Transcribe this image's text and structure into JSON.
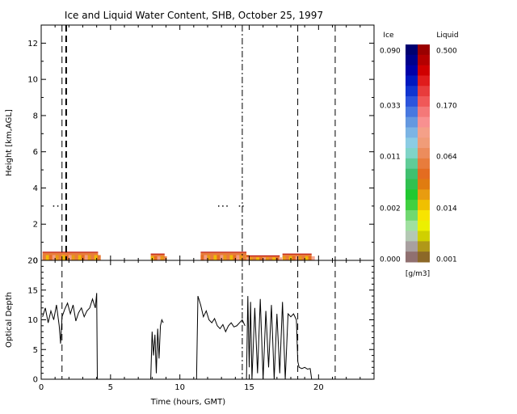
{
  "chart_data": [
    {
      "type": "heatmap",
      "title": "Ice and Liquid Water Content, SHB, October 25, 1997",
      "ylabel": "Height [km,AGL]",
      "xlim": [
        0,
        24
      ],
      "ylim": [
        0,
        13
      ],
      "yticks": [
        0,
        2,
        4,
        6,
        8,
        10,
        12
      ],
      "liquid_cloud_segments": [
        {
          "x": [
            0.1,
            4.1
          ],
          "y": [
            0,
            0.45
          ]
        },
        {
          "x": [
            7.9,
            8.9
          ],
          "y": [
            0,
            0.35
          ]
        },
        {
          "x": [
            11.5,
            14.8
          ],
          "y": [
            0,
            0.45
          ]
        },
        {
          "x": [
            14.8,
            17.2
          ],
          "y": [
            0,
            0.25
          ]
        },
        {
          "x": [
            17.4,
            19.5
          ],
          "y": [
            0,
            0.35
          ]
        }
      ],
      "scattered_points": [
        {
          "x": 0.9,
          "y": 3.0
        },
        {
          "x": 1.2,
          "y": 3.0
        },
        {
          "x": 12.8,
          "y": 3.0
        },
        {
          "x": 13.1,
          "y": 3.0
        },
        {
          "x": 13.4,
          "y": 3.0
        },
        {
          "x": 14.3,
          "y": 3.0
        },
        {
          "x": 14.55,
          "y": 3.0
        }
      ],
      "vertical_lines": [
        {
          "x": 1.5,
          "style": "dash"
        },
        {
          "x": 1.8,
          "style": "dash",
          "weight": "bold"
        },
        {
          "x": 14.5,
          "style": "dashdot"
        },
        {
          "x": 18.5,
          "style": "dash"
        },
        {
          "x": 21.2,
          "style": "dash"
        }
      ]
    },
    {
      "type": "line",
      "ylabel": "Optical Depth",
      "xlabel": "Time (hours, GMT)",
      "xlim": [
        0,
        24
      ],
      "ylim": [
        0,
        20
      ],
      "xticks": [
        0,
        5,
        10,
        15,
        20
      ],
      "yticks": [
        0,
        5,
        10,
        15,
        20
      ],
      "segments": [
        {
          "x": [
            0.1,
            0.3,
            0.5,
            0.7,
            0.9,
            1.1,
            1.3,
            1.4,
            1.5,
            1.7,
            1.9,
            2.1,
            2.3,
            2.5,
            2.7,
            2.9,
            3.1,
            3.3,
            3.5,
            3.7,
            3.9,
            4.0,
            4.05
          ],
          "y": [
            10.5,
            12.0,
            9.5,
            11.5,
            10.0,
            12.5,
            9.0,
            6.0,
            10.5,
            11.8,
            12.8,
            11.0,
            12.5,
            9.8,
            11.2,
            12.0,
            10.5,
            11.5,
            12.0,
            13.5,
            12.0,
            14.5,
            0
          ]
        },
        {
          "x": [
            7.9,
            8.0,
            8.1,
            8.2,
            8.3,
            8.4,
            8.5,
            8.6,
            8.7,
            8.8
          ],
          "y": [
            0,
            8.0,
            4.0,
            7.5,
            1.0,
            8.5,
            3.5,
            9.0,
            10.0,
            9.5
          ]
        },
        {
          "x": [
            11.2,
            11.3,
            11.5,
            11.7,
            11.9,
            12.1,
            12.3,
            12.5,
            12.7,
            12.9,
            13.1,
            13.3,
            13.5,
            13.7,
            13.9,
            14.1,
            14.3,
            14.5,
            14.7
          ],
          "y": [
            0,
            14.0,
            12.5,
            10.5,
            11.5,
            10.0,
            9.5,
            10.2,
            9.0,
            8.5,
            9.2,
            8.0,
            9.0,
            9.5,
            8.8,
            9.0,
            9.5,
            10.0,
            9.0
          ]
        },
        {
          "x": [
            14.8,
            14.9,
            15.0,
            15.1,
            15.2,
            15.4,
            15.6,
            15.8,
            16.0,
            16.2,
            16.4,
            16.6,
            16.8,
            17.0,
            17.2,
            17.4,
            17.6,
            17.8,
            18.0,
            18.2,
            18.4
          ],
          "y": [
            0,
            14.0,
            2.0,
            13.0,
            0,
            12.0,
            1.0,
            13.5,
            0,
            11.5,
            2.0,
            12.5,
            0,
            11.0,
            1.0,
            13.0,
            0,
            11.0,
            10.5,
            11.0,
            10.0
          ]
        },
        {
          "x": [
            18.4,
            18.5,
            18.6,
            18.8,
            19.0,
            19.2,
            19.4,
            19.5
          ],
          "y": [
            10.0,
            3.0,
            2.0,
            1.8,
            2.0,
            1.7,
            1.8,
            0
          ]
        }
      ],
      "vertical_lines": [
        {
          "x": 1.5,
          "style": "dash"
        },
        {
          "x": 14.5,
          "style": "dashdot"
        },
        {
          "x": 18.5,
          "style": "dash"
        },
        {
          "x": 21.2,
          "style": "dash"
        }
      ]
    }
  ],
  "colorbar": {
    "ice_label": "Ice",
    "liquid_label": "Liquid",
    "unit": "[g/m3]",
    "ice_ticks": [
      "0.090",
      "0.033",
      "0.011",
      "0.002",
      "0.000"
    ],
    "liquid_ticks": [
      "0.500",
      "0.170",
      "0.064",
      "0.014",
      "0.001"
    ],
    "ice_colors": [
      "#000070",
      "#00008c",
      "#0000a8",
      "#0018c0",
      "#1034d0",
      "#2c54dc",
      "#4878e0",
      "#6498e0",
      "#7cb4e4",
      "#8ccce4",
      "#80d4c8",
      "#60cc98",
      "#40c070",
      "#30c050",
      "#20c830",
      "#40d040",
      "#70d870",
      "#a0e0a0",
      "#b4c8b4",
      "#a8a0a0",
      "#907070"
    ],
    "liquid_colors": [
      "#9a0000",
      "#b40000",
      "#d00000",
      "#e01c1c",
      "#e83c3c",
      "#f05858",
      "#f47878",
      "#f89090",
      "#f4a088",
      "#f09c78",
      "#ec8c5c",
      "#e87c3c",
      "#e46c20",
      "#e07c10",
      "#e89c10",
      "#f0c000",
      "#f8e400",
      "#ecf000",
      "#d0d000",
      "#b09818",
      "#8c6828"
    ]
  }
}
